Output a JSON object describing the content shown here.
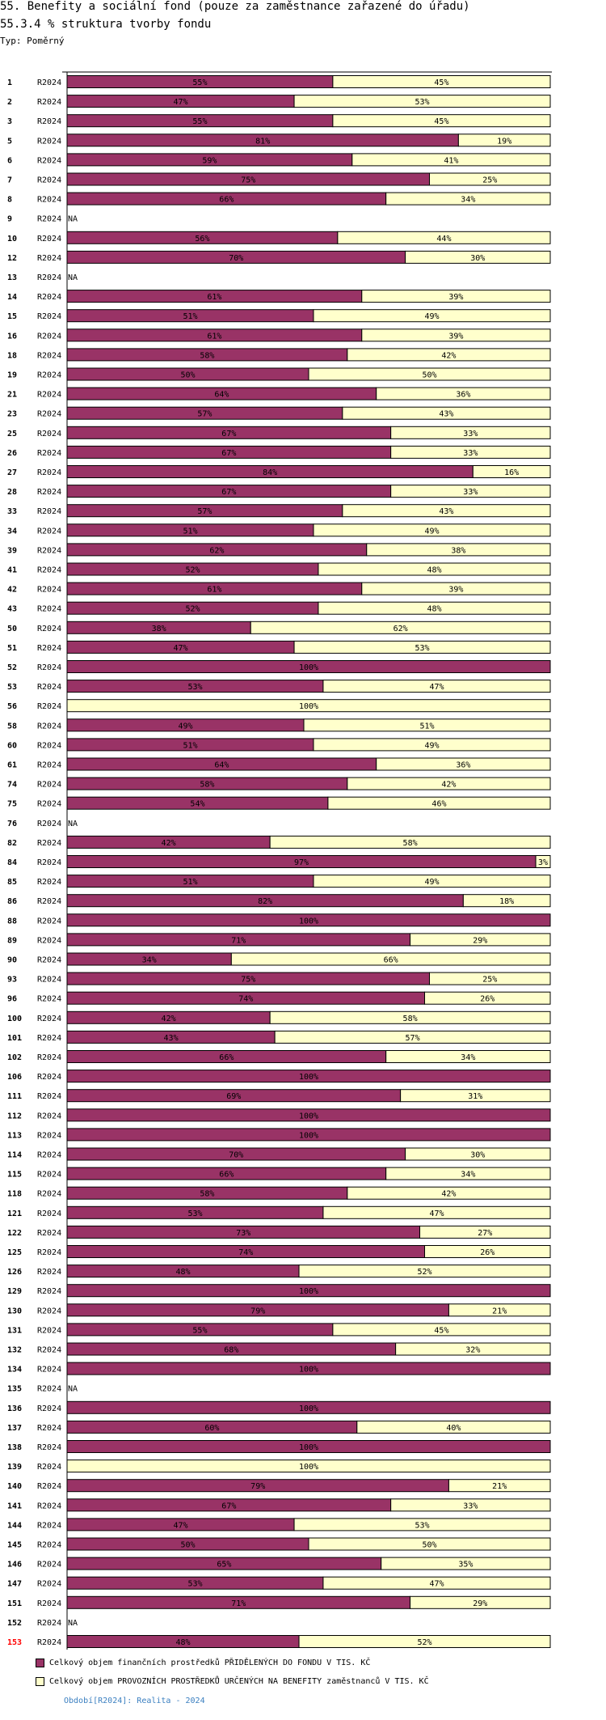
{
  "header": {
    "title": "55. Benefity a sociální fond (pouze za zaměstnance zařazené do úřadu)",
    "subtitle": "55.3.4 % struktura tvorby fondu",
    "type_label": "Typ: Poměrný"
  },
  "colors": {
    "series1": "#993366",
    "series2": "#ffffcc",
    "highlight_label": "#ff0000",
    "footer_link": "#3a7fc0"
  },
  "chart_data": {
    "type": "bar",
    "orientation": "horizontal",
    "stacked": true,
    "percent": true,
    "xlim": [
      0,
      100
    ],
    "period_label": "R2024",
    "na_label": "NA",
    "series": [
      {
        "name": "Celkový objem finančních prostředků PŘIDĚLENÝCH DO FONDU V TIS. KČ"
      },
      {
        "name": "Celkový objem PROVOZNÍCH PROSTŘEDKŮ URČENÝCH NA BENEFITY zaměstnanců V TIS. KČ"
      }
    ],
    "rows": [
      {
        "id": "1",
        "v": [
          55,
          45
        ]
      },
      {
        "id": "2",
        "v": [
          47,
          53
        ]
      },
      {
        "id": "3",
        "v": [
          55,
          45
        ]
      },
      {
        "id": "5",
        "v": [
          81,
          19
        ]
      },
      {
        "id": "6",
        "v": [
          59,
          41
        ]
      },
      {
        "id": "7",
        "v": [
          75,
          25
        ]
      },
      {
        "id": "8",
        "v": [
          66,
          34
        ]
      },
      {
        "id": "9",
        "v": null
      },
      {
        "id": "10",
        "v": [
          56,
          44
        ]
      },
      {
        "id": "12",
        "v": [
          70,
          30
        ]
      },
      {
        "id": "13",
        "v": null
      },
      {
        "id": "14",
        "v": [
          61,
          39
        ]
      },
      {
        "id": "15",
        "v": [
          51,
          49
        ]
      },
      {
        "id": "16",
        "v": [
          61,
          39
        ]
      },
      {
        "id": "18",
        "v": [
          58,
          42
        ]
      },
      {
        "id": "19",
        "v": [
          50,
          50
        ]
      },
      {
        "id": "21",
        "v": [
          64,
          36
        ]
      },
      {
        "id": "23",
        "v": [
          57,
          43
        ]
      },
      {
        "id": "25",
        "v": [
          67,
          33
        ]
      },
      {
        "id": "26",
        "v": [
          67,
          33
        ]
      },
      {
        "id": "27",
        "v": [
          84,
          16
        ]
      },
      {
        "id": "28",
        "v": [
          67,
          33
        ]
      },
      {
        "id": "33",
        "v": [
          57,
          43
        ]
      },
      {
        "id": "34",
        "v": [
          51,
          49
        ]
      },
      {
        "id": "39",
        "v": [
          62,
          38
        ]
      },
      {
        "id": "41",
        "v": [
          52,
          48
        ]
      },
      {
        "id": "42",
        "v": [
          61,
          39
        ]
      },
      {
        "id": "43",
        "v": [
          52,
          48
        ]
      },
      {
        "id": "50",
        "v": [
          38,
          62
        ]
      },
      {
        "id": "51",
        "v": [
          47,
          53
        ]
      },
      {
        "id": "52",
        "v": [
          100,
          0
        ]
      },
      {
        "id": "53",
        "v": [
          53,
          47
        ]
      },
      {
        "id": "56",
        "v": [
          0,
          100
        ]
      },
      {
        "id": "58",
        "v": [
          49,
          51
        ]
      },
      {
        "id": "60",
        "v": [
          51,
          49
        ]
      },
      {
        "id": "61",
        "v": [
          64,
          36
        ]
      },
      {
        "id": "74",
        "v": [
          58,
          42
        ]
      },
      {
        "id": "75",
        "v": [
          54,
          46
        ]
      },
      {
        "id": "76",
        "v": null
      },
      {
        "id": "82",
        "v": [
          42,
          58
        ]
      },
      {
        "id": "84",
        "v": [
          97,
          3
        ]
      },
      {
        "id": "85",
        "v": [
          51,
          49
        ]
      },
      {
        "id": "86",
        "v": [
          82,
          18
        ]
      },
      {
        "id": "88",
        "v": [
          100,
          0
        ]
      },
      {
        "id": "89",
        "v": [
          71,
          29
        ]
      },
      {
        "id": "90",
        "v": [
          34,
          66
        ]
      },
      {
        "id": "93",
        "v": [
          75,
          25
        ]
      },
      {
        "id": "96",
        "v": [
          74,
          26
        ]
      },
      {
        "id": "100",
        "v": [
          42,
          58
        ]
      },
      {
        "id": "101",
        "v": [
          43,
          57
        ]
      },
      {
        "id": "102",
        "v": [
          66,
          34
        ]
      },
      {
        "id": "106",
        "v": [
          100,
          0
        ]
      },
      {
        "id": "111",
        "v": [
          69,
          31
        ]
      },
      {
        "id": "112",
        "v": [
          100,
          0
        ]
      },
      {
        "id": "113",
        "v": [
          100,
          0
        ]
      },
      {
        "id": "114",
        "v": [
          70,
          30
        ]
      },
      {
        "id": "115",
        "v": [
          66,
          34
        ]
      },
      {
        "id": "118",
        "v": [
          58,
          42
        ]
      },
      {
        "id": "121",
        "v": [
          53,
          47
        ]
      },
      {
        "id": "122",
        "v": [
          73,
          27
        ]
      },
      {
        "id": "125",
        "v": [
          74,
          26
        ]
      },
      {
        "id": "126",
        "v": [
          48,
          52
        ]
      },
      {
        "id": "129",
        "v": [
          100,
          0
        ]
      },
      {
        "id": "130",
        "v": [
          79,
          21
        ]
      },
      {
        "id": "131",
        "v": [
          55,
          45
        ]
      },
      {
        "id": "132",
        "v": [
          68,
          32
        ]
      },
      {
        "id": "134",
        "v": [
          100,
          0
        ]
      },
      {
        "id": "135",
        "v": null
      },
      {
        "id": "136",
        "v": [
          100,
          0
        ]
      },
      {
        "id": "137",
        "v": [
          60,
          40
        ]
      },
      {
        "id": "138",
        "v": [
          100,
          0
        ]
      },
      {
        "id": "139",
        "v": [
          0,
          100
        ]
      },
      {
        "id": "140",
        "v": [
          79,
          21
        ]
      },
      {
        "id": "141",
        "v": [
          67,
          33
        ]
      },
      {
        "id": "144",
        "v": [
          47,
          53
        ]
      },
      {
        "id": "145",
        "v": [
          50,
          50
        ]
      },
      {
        "id": "146",
        "v": [
          65,
          35
        ]
      },
      {
        "id": "147",
        "v": [
          53,
          47
        ]
      },
      {
        "id": "151",
        "v": [
          71,
          29
        ]
      },
      {
        "id": "152",
        "v": null
      },
      {
        "id": "153",
        "v": [
          48,
          52
        ],
        "highlight": true
      }
    ]
  },
  "legend": {
    "item1": "Celkový objem finančních prostředků PŘIDĚLENÝCH DO FONDU V TIS. KČ",
    "item2": "Celkový objem PROVOZNÍCH PROSTŘEDKŮ URČENÝCH NA BENEFITY zaměstnanců V TIS. KČ"
  },
  "footer": {
    "period": "Období[R2024]: Realita - 2024"
  }
}
